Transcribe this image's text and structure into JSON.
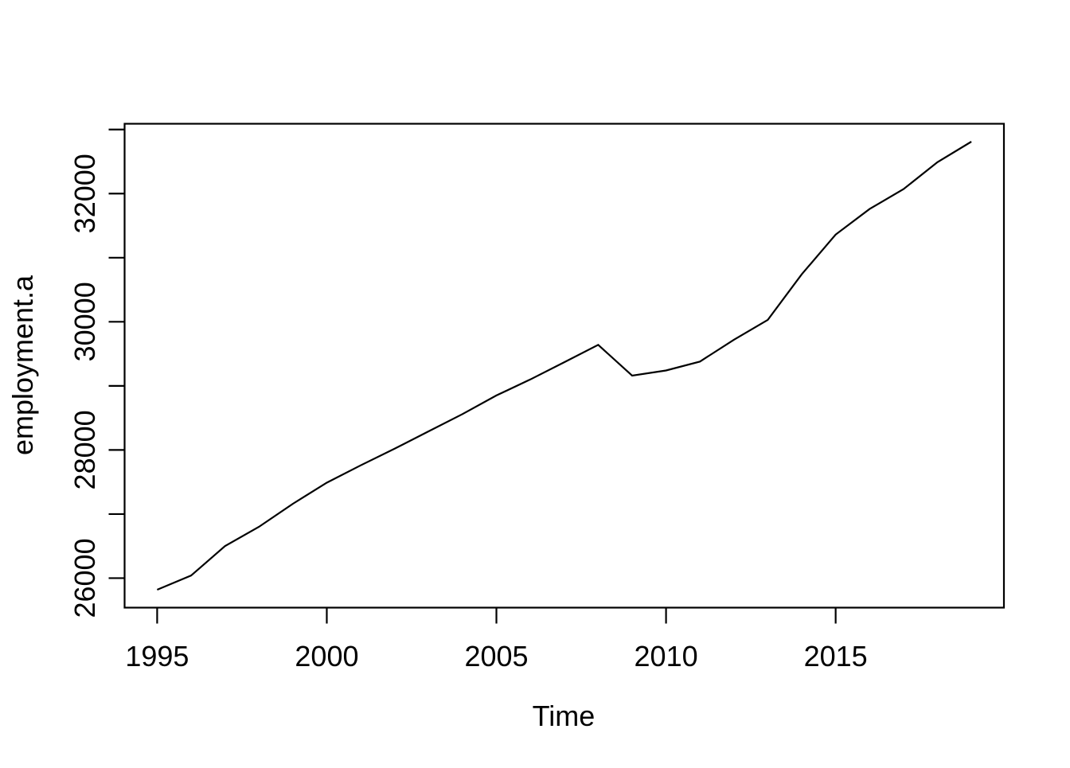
{
  "figure": {
    "background_color": "#ffffff",
    "foreground_color": "#000000"
  },
  "chart_data": {
    "type": "line",
    "title": "",
    "xlabel": "Time",
    "ylabel": "employment.a",
    "x": [
      1995,
      1996,
      1997,
      1998,
      1999,
      2000,
      2001,
      2002,
      2003,
      2004,
      2005,
      2006,
      2007,
      2008,
      2009,
      2010,
      2011,
      2012,
      2013,
      2014,
      2015,
      2016,
      2017,
      2018,
      2019
    ],
    "series": [
      {
        "name": "employment.a",
        "color": "#000000",
        "values": [
          25820,
          26040,
          26500,
          26800,
          27160,
          27490,
          27760,
          28020,
          28290,
          28560,
          28850,
          29100,
          29370,
          29640,
          29160,
          29240,
          29380,
          29720,
          30030,
          30740,
          31360,
          31760,
          32070,
          32490,
          32810
        ]
      }
    ],
    "xlim": [
      1994.04,
      2019.96
    ],
    "ylim": [
      25540,
      33090
    ],
    "x_ticks": [
      1995,
      2000,
      2005,
      2010,
      2015
    ],
    "x_tick_labels": [
      "1995",
      "2000",
      "2005",
      "2010",
      "2015"
    ],
    "y_ticks": [
      26000,
      27000,
      28000,
      29000,
      30000,
      31000,
      32000,
      33000
    ],
    "y_tick_labels": [
      "26000",
      "",
      "28000",
      "",
      "30000",
      "",
      "32000",
      ""
    ],
    "grid": "off",
    "legend": "none",
    "frame": "box"
  }
}
